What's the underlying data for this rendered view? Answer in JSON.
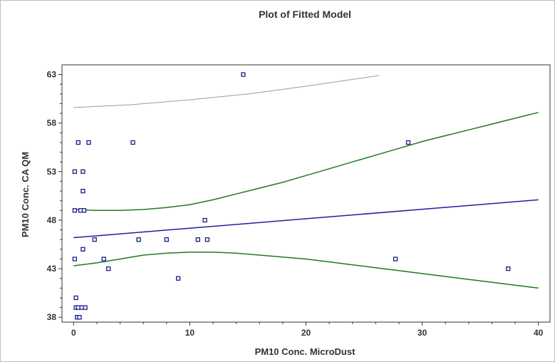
{
  "chart_data": {
    "type": "scatter",
    "title": "Plot of Fitted Model",
    "xlabel": "PM10 Conc. MicroDust",
    "ylabel": "PM10 Conc. CA QM",
    "xlim": [
      -1,
      41
    ],
    "ylim": [
      37.5,
      64
    ],
    "x_ticks": [
      0,
      10,
      20,
      30,
      40
    ],
    "y_ticks": [
      38,
      43,
      48,
      53,
      58,
      63
    ],
    "grid": false,
    "colors": {
      "points": "#1a1a8c",
      "fit_line": "#2020a0",
      "confidence_limits": "#1f7a1f",
      "prediction_limit": "#9a9a9a",
      "axes": "#333333",
      "frame": "#bdbdbd"
    },
    "points": [
      {
        "x": 0.1,
        "y": 53
      },
      {
        "x": 0.1,
        "y": 49
      },
      {
        "x": 0.1,
        "y": 44
      },
      {
        "x": 0.2,
        "y": 40
      },
      {
        "x": 0.2,
        "y": 39
      },
      {
        "x": 0.3,
        "y": 38
      },
      {
        "x": 0.4,
        "y": 56
      },
      {
        "x": 0.4,
        "y": 39
      },
      {
        "x": 0.5,
        "y": 38
      },
      {
        "x": 0.6,
        "y": 49
      },
      {
        "x": 0.7,
        "y": 39
      },
      {
        "x": 0.8,
        "y": 53
      },
      {
        "x": 0.8,
        "y": 51
      },
      {
        "x": 0.8,
        "y": 45
      },
      {
        "x": 0.9,
        "y": 49
      },
      {
        "x": 1.0,
        "y": 39
      },
      {
        "x": 1.3,
        "y": 56
      },
      {
        "x": 1.8,
        "y": 46
      },
      {
        "x": 2.6,
        "y": 44
      },
      {
        "x": 3.0,
        "y": 43
      },
      {
        "x": 5.1,
        "y": 56
      },
      {
        "x": 5.6,
        "y": 46
      },
      {
        "x": 8.0,
        "y": 46
      },
      {
        "x": 9.0,
        "y": 42
      },
      {
        "x": 10.7,
        "y": 46
      },
      {
        "x": 11.3,
        "y": 48
      },
      {
        "x": 11.5,
        "y": 46
      },
      {
        "x": 14.6,
        "y": 63
      },
      {
        "x": 27.7,
        "y": 44
      },
      {
        "x": 28.8,
        "y": 56
      },
      {
        "x": 37.4,
        "y": 43
      }
    ],
    "series": [
      {
        "role": "fit",
        "x": [
          0,
          40
        ],
        "y": [
          46.2,
          50.1
        ]
      },
      {
        "role": "upper-confidence",
        "x": [
          0,
          2,
          4,
          6,
          8,
          10,
          12,
          14,
          16,
          18,
          20,
          22,
          24,
          26,
          28,
          30,
          32,
          34,
          36,
          38,
          40
        ],
        "y": [
          49.1,
          49.0,
          49.0,
          49.1,
          49.3,
          49.6,
          50.1,
          50.7,
          51.3,
          51.9,
          52.6,
          53.3,
          54.0,
          54.7,
          55.4,
          56.1,
          56.7,
          57.3,
          57.9,
          58.5,
          59.1
        ]
      },
      {
        "role": "lower-confidence",
        "x": [
          0,
          2,
          4,
          6,
          8,
          10,
          12,
          14,
          16,
          18,
          20,
          22,
          24,
          26,
          28,
          30,
          32,
          34,
          36,
          38,
          40
        ],
        "y": [
          43.3,
          43.6,
          44.0,
          44.4,
          44.6,
          44.7,
          44.7,
          44.6,
          44.4,
          44.2,
          44.0,
          43.7,
          43.4,
          43.1,
          42.8,
          42.5,
          42.2,
          41.9,
          41.6,
          41.3,
          41.0
        ]
      },
      {
        "role": "upper-prediction",
        "x": [
          0,
          5,
          10,
          15,
          20,
          26.3
        ],
        "y": [
          59.6,
          59.9,
          60.4,
          61.0,
          61.8,
          62.9
        ]
      }
    ]
  }
}
